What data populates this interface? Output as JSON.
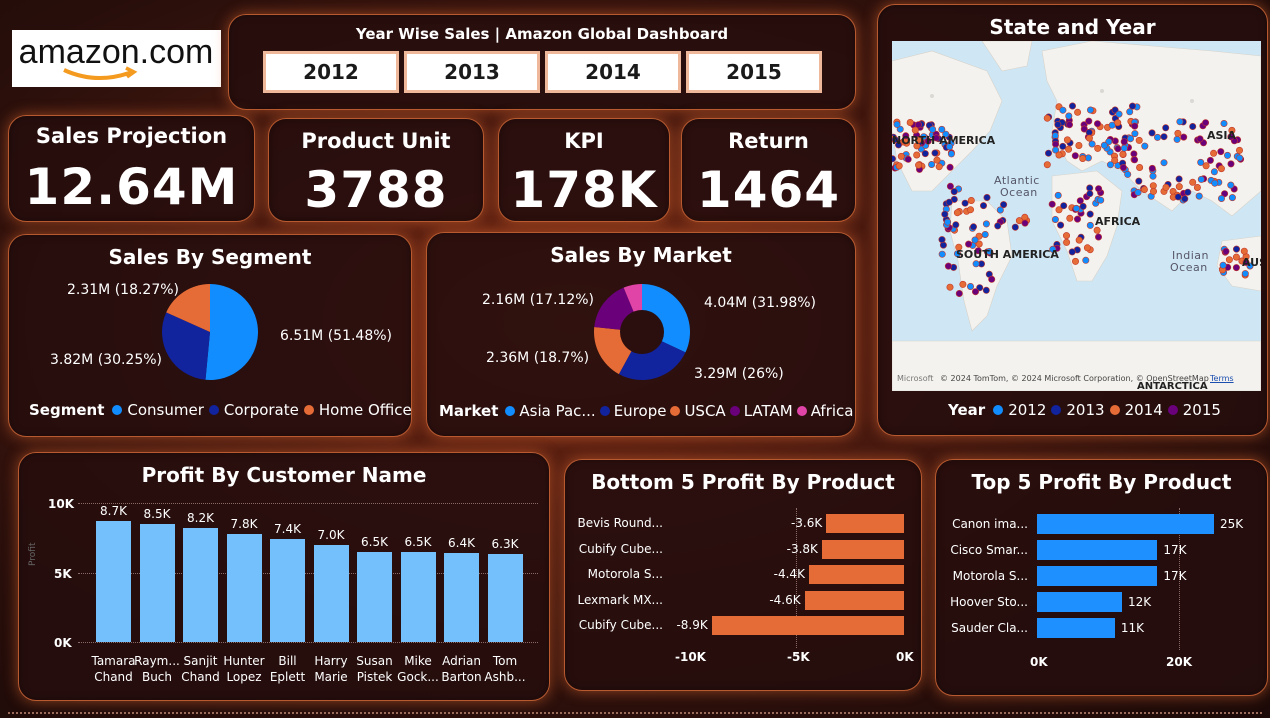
{
  "header": {
    "logo_text": "amazon.com",
    "title": "Year Wise Sales | Amazon Global Dashboard",
    "years": [
      "2012",
      "2013",
      "2014",
      "2015"
    ]
  },
  "kpis": [
    {
      "label": "Sales Projection",
      "value": "12.64M"
    },
    {
      "label": "Product Unit",
      "value": "3788"
    },
    {
      "label": "KPI",
      "value": "178K"
    },
    {
      "label": "Return",
      "value": "1464"
    }
  ],
  "colors": {
    "blue": "#118dff",
    "navy": "#12239e",
    "orange": "#e66c37",
    "purple": "#6b007b",
    "pink": "#e044a7",
    "light_blue": "#74c0fc",
    "bar_orange": "#e66c37",
    "bar_blue": "#1e90ff"
  },
  "map": {
    "title": "State and Year",
    "labels": {
      "north_america": "NORTH AMERICA",
      "atlantic": "Atlantic",
      "ocean": "Ocean",
      "africa": "AFRICA",
      "asia": "ASIA",
      "south_america": "SOUTH AMERICA",
      "indian": "Indian",
      "antarctica": "ANTARCTICA",
      "aus": "AUS"
    },
    "attribution": "© 2024 TomTom, © 2024 Microsoft Corporation, © OpenStreetMap",
    "terms": "Terms",
    "ms_logo": "Microsoft",
    "legend_title": "Year",
    "legend": [
      "2012",
      "2013",
      "2014",
      "2015"
    ]
  },
  "segment": {
    "title": "Sales By Segment",
    "legend_title": "Segment",
    "legend": [
      "Consumer",
      "Corporate",
      "Home Office"
    ],
    "labels": [
      "6.51M (51.48%)",
      "3.82M (30.25%)",
      "2.31M (18.27%)"
    ]
  },
  "market": {
    "title": "Sales By Market",
    "legend_title": "Market",
    "legend": [
      "Asia Pac...",
      "Europe",
      "USCA",
      "LATAM",
      "Africa"
    ],
    "labels": [
      "4.04M (31.98%)",
      "3.29M (26%)",
      "2.36M (18.7%)",
      "2.16M (17.12%)"
    ]
  },
  "chart_data": [
    {
      "type": "pie",
      "title": "Sales By Segment",
      "categories": [
        "Consumer",
        "Corporate",
        "Home Office"
      ],
      "values": [
        6.51,
        3.82,
        2.31
      ],
      "percent": [
        51.48,
        30.25,
        18.27
      ]
    },
    {
      "type": "pie",
      "title": "Sales By Market",
      "categories": [
        "Asia Pac...",
        "Europe",
        "USCA",
        "LATAM",
        "Africa"
      ],
      "values": [
        4.04,
        3.29,
        2.36,
        2.16,
        0.79
      ],
      "percent": [
        31.98,
        26.0,
        18.7,
        17.12,
        6.2
      ]
    },
    {
      "type": "bar",
      "title": "Profit By Customer Name",
      "categories": [
        "Tamara Chand",
        "Raym... Buch",
        "Sanjit Chand",
        "Hunter Lopez",
        "Bill Eplett",
        "Harry Marie",
        "Susan Pistek",
        "Mike Gock...",
        "Adrian Barton",
        "Tom Ashb..."
      ],
      "category_lines": [
        [
          "Tamara",
          "Chand"
        ],
        [
          "Raym...",
          "Buch"
        ],
        [
          "Sanjit",
          "Chand"
        ],
        [
          "Hunter",
          "Lopez"
        ],
        [
          "Bill",
          "Eplett"
        ],
        [
          "Harry",
          "Marie"
        ],
        [
          "Susan",
          "Pistek"
        ],
        [
          "Mike",
          "Gock..."
        ],
        [
          "Adrian",
          "Barton"
        ],
        [
          "Tom",
          "Ashb..."
        ]
      ],
      "values": [
        8700,
        8500,
        8200,
        7800,
        7400,
        7000,
        6500,
        6500,
        6400,
        6300
      ],
      "value_labels": [
        "8.7K",
        "8.5K",
        "8.2K",
        "7.8K",
        "7.4K",
        "7.0K",
        "6.5K",
        "6.5K",
        "6.4K",
        "6.3K"
      ],
      "ylabel": "Profit",
      "ylim": [
        0,
        10000
      ],
      "yticks": [
        "0K",
        "5K",
        "10K"
      ]
    },
    {
      "type": "bar",
      "title": "Bottom 5 Profit By Product",
      "orientation": "horizontal",
      "categories": [
        "Bevis Round...",
        "Cubify Cube...",
        "Motorola S...",
        "Lexmark MX...",
        "Cubify Cube..."
      ],
      "values": [
        -3600,
        -3800,
        -4400,
        -4600,
        -8900
      ],
      "value_labels": [
        "-3.6K",
        "-3.8K",
        "-4.4K",
        "-4.6K",
        "-8.9K"
      ],
      "xlim": [
        -10000,
        0
      ],
      "xticks": [
        "-10K",
        "-5K",
        "0K"
      ]
    },
    {
      "type": "bar",
      "title": "Top 5 Profit By Product",
      "orientation": "horizontal",
      "categories": [
        "Canon ima...",
        "Cisco Smar...",
        "Motorola S...",
        "Hoover Sto...",
        "Sauder Cla..."
      ],
      "values": [
        25000,
        17000,
        17000,
        12000,
        11000
      ],
      "value_labels": [
        "25K",
        "17K",
        "17K",
        "12K",
        "11K"
      ],
      "xlim": [
        0,
        25000
      ],
      "xticks": [
        "0K",
        "20K"
      ]
    }
  ]
}
